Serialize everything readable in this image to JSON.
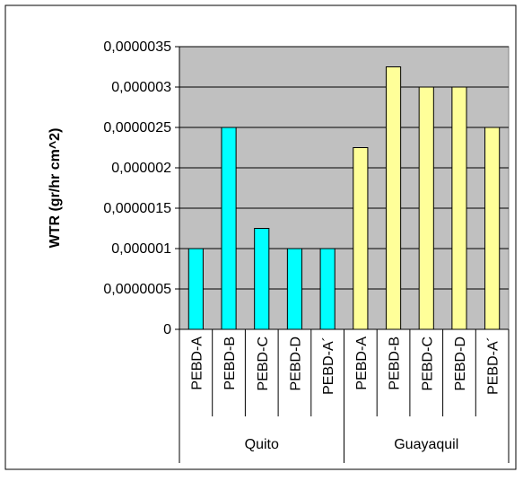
{
  "chart_data": {
    "type": "bar",
    "title": "",
    "ylabel": "WTR (gr/hr cm^2)",
    "xlabel": "",
    "ylim": [
      0,
      3.5e-06
    ],
    "yticks": [
      {
        "value": 0,
        "label": "0"
      },
      {
        "value": 5e-07,
        "label": "0,0000005"
      },
      {
        "value": 1e-06,
        "label": "0,000001"
      },
      {
        "value": 1.5e-06,
        "label": "0,0000015"
      },
      {
        "value": 2e-06,
        "label": "0,000002"
      },
      {
        "value": 2.5e-06,
        "label": "0,0000025"
      },
      {
        "value": 3e-06,
        "label": "0,000003"
      },
      {
        "value": 3.5e-06,
        "label": "0,0000035"
      }
    ],
    "grid": true,
    "legend": "none",
    "groups": [
      {
        "name": "Quito",
        "color": "#00FFFF",
        "categories": [
          "PEBD-A",
          "PEBD-B",
          "PEBD-C",
          "PEBD-D",
          "PEBD-A´"
        ],
        "values": [
          1e-06,
          2.5e-06,
          1.25e-06,
          1e-06,
          1e-06
        ]
      },
      {
        "name": "Guayaquil",
        "color": "#FFFF99",
        "categories": [
          "PEBD-A",
          "PEBD-B",
          "PEBD-C",
          "PEBD-D",
          "PEBD-A´"
        ],
        "values": [
          2.25e-06,
          3.25e-06,
          3e-06,
          3e-06,
          2.5e-06
        ]
      }
    ],
    "colors": {
      "plot_background": "#C0C0C0",
      "gridline": "#000000",
      "bar_outline": "#000000"
    }
  }
}
